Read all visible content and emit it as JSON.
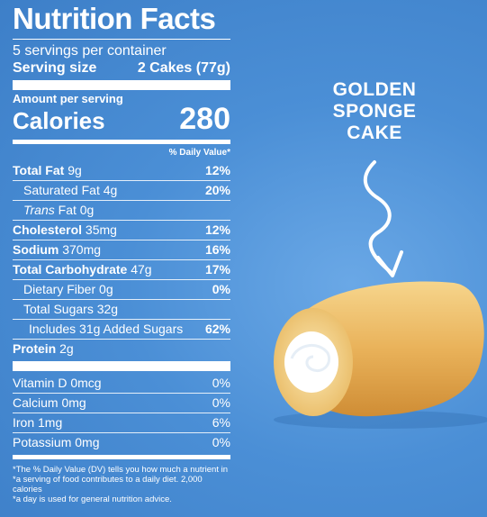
{
  "label": {
    "title": "Nutrition Facts",
    "servings": "5 servings per container",
    "serving_size_label": "Serving size",
    "serving_size_value": "2 Cakes (77g)",
    "amount_per_serving": "Amount per serving",
    "calories_label": "Calories",
    "calories_value": "280",
    "dv_header": "% Daily Value*",
    "nutrients": [
      {
        "name": "Total Fat",
        "amount": "9g",
        "pct": "12%"
      },
      {
        "name": "Saturated Fat",
        "amount": "4g",
        "pct": "20%"
      },
      {
        "name": "Trans",
        "amount": "Fat 0g",
        "pct": ""
      },
      {
        "name": "Cholesterol",
        "amount": "35mg",
        "pct": "12%"
      },
      {
        "name": "Sodium",
        "amount": "370mg",
        "pct": "16%"
      },
      {
        "name": "Total Carbohydrate",
        "amount": "47g",
        "pct": "17%"
      },
      {
        "name": "Dietary Fiber",
        "amount": "0g",
        "pct": "0%"
      },
      {
        "name": "Total Sugars",
        "amount": "32g",
        "pct": ""
      },
      {
        "name": "Includes 31g Added Sugars",
        "amount": "",
        "pct": "62%"
      },
      {
        "name": "Protein",
        "amount": "2g",
        "pct": ""
      }
    ],
    "vitamins": [
      {
        "name": "Vitamin D",
        "amount": "0mcg",
        "pct": "0%"
      },
      {
        "name": "Calcium",
        "amount": "0mg",
        "pct": "0%"
      },
      {
        "name": "Iron",
        "amount": "1mg",
        "pct": "6%"
      },
      {
        "name": "Potassium",
        "amount": "0mg",
        "pct": "0%"
      }
    ],
    "footnote_1": "*The % Daily Value (DV) tells you how much a nutrient in",
    "footnote_2": "*a serving of food contributes to a daily diet. 2,000 calories",
    "footnote_3": "*a day is used for general nutrition advice."
  },
  "callout": {
    "line1": "GOLDEN",
    "line2": "SPONGE",
    "line3": "CAKE"
  },
  "icons": {
    "arrow": "squiggle-down-arrow-icon",
    "cake": "sponge-cake-illustration"
  }
}
